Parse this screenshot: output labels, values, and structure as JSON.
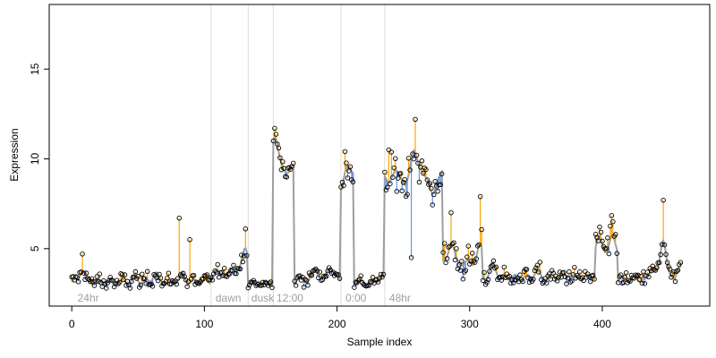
{
  "chart_data": {
    "type": "scatter",
    "title": "",
    "xlabel": "Sample index",
    "ylabel": "Expression",
    "xlim": [
      -17,
      481
    ],
    "ylim": [
      1.8,
      18.6
    ],
    "xticks": [
      0,
      100,
      200,
      300,
      400
    ],
    "yticks": [
      5,
      10,
      15
    ],
    "grid": false,
    "region_boundaries": [
      105,
      133,
      152,
      203,
      236
    ],
    "region_labels": [
      {
        "label": "24hr",
        "x": 3
      },
      {
        "label": "dawn",
        "x": 107
      },
      {
        "label": "dusk",
        "x": 134
      },
      {
        "label": "12:00",
        "x": 153
      },
      {
        "label": "0:00",
        "x": 205
      },
      {
        "label": "48hr",
        "x": 238
      }
    ],
    "colors": {
      "fitted_line": "#9e9e9e",
      "residual_above": "#ffa500",
      "residual_below": "#6495ed",
      "point_edge": "#000000",
      "boundary_line": "#dcdcdc",
      "region_label": "#a0a0a0"
    },
    "segments": [
      {
        "x0": 0,
        "x1": 105,
        "base": 3.15,
        "noise": 0.35,
        "bumps": [
          [
            8,
            3.9,
            1.0
          ],
          [
            48,
            3.3,
            1.5
          ],
          [
            63,
            3.5,
            1.5
          ],
          [
            83,
            3.6,
            1.0
          ]
        ]
      },
      {
        "x0": 105,
        "x1": 133,
        "base": 3.6,
        "noise": 0.3,
        "bumps": [
          [
            123,
            4.2,
            0.8
          ],
          [
            131,
            4.8,
            1.4
          ]
        ]
      },
      {
        "x0": 133,
        "x1": 152,
        "base": 3.05,
        "noise": 0.15,
        "bumps": []
      },
      {
        "x0": 152,
        "x1": 168,
        "base": 9.8,
        "noise": 0.5,
        "bumps": [
          [
            153,
            10.8,
            1.5
          ],
          [
            163,
            8.8,
            0.8
          ]
        ]
      },
      {
        "x0": 168,
        "x1": 203,
        "base": 3.3,
        "noise": 0.3,
        "bumps": [
          [
            184,
            3.9,
            0.9
          ],
          [
            195,
            4.2,
            0.9
          ]
        ]
      },
      {
        "x0": 203,
        "x1": 213,
        "base": 9.3,
        "noise": 0.6,
        "bumps": [
          [
            203,
            6.5,
            0.4
          ],
          [
            206,
            10.0,
            0.6
          ]
        ]
      },
      {
        "x0": 213,
        "x1": 236,
        "base": 3.1,
        "noise": 0.2,
        "bumps": [
          [
            233,
            3.8,
            0.5
          ]
        ]
      },
      {
        "x0": 236,
        "x1": 280,
        "base": 9.2,
        "noise": 0.9,
        "bumps": [
          [
            238,
            7.5,
            0.3
          ],
          [
            252,
            7.9,
            0.6
          ],
          [
            258,
            10.8,
            1.0
          ],
          [
            272,
            8.0,
            1.2
          ]
        ]
      },
      {
        "x0": 280,
        "x1": 310,
        "base": 4.2,
        "noise": 0.7,
        "bumps": [
          [
            286,
            5.8,
            0.8
          ],
          [
            308,
            5.5,
            0.8
          ]
        ]
      },
      {
        "x0": 310,
        "x1": 395,
        "base": 3.4,
        "noise": 0.4,
        "bumps": [
          [
            318,
            4.4,
            0.8
          ],
          [
            350,
            3.8,
            0.8
          ],
          [
            375,
            3.6,
            0.8
          ]
        ]
      },
      {
        "x0": 395,
        "x1": 412,
        "base": 4.8,
        "noise": 0.8,
        "bumps": [
          [
            398,
            5.9,
            0.8
          ],
          [
            408,
            6.0,
            0.8
          ]
        ]
      },
      {
        "x0": 412,
        "x1": 460,
        "base": 3.3,
        "noise": 0.35,
        "bumps": [
          [
            438,
            4.2,
            0.8
          ],
          [
            446,
            6.5,
            0.8
          ],
          [
            458,
            4.5,
            0.6
          ]
        ]
      }
    ],
    "outliers": [
      {
        "x": 8,
        "y": 4.7
      },
      {
        "x": 81,
        "y": 6.7
      },
      {
        "x": 89,
        "y": 5.5
      },
      {
        "x": 131,
        "y": 6.1
      },
      {
        "x": 153,
        "y": 11.7
      },
      {
        "x": 206,
        "y": 10.4
      },
      {
        "x": 239,
        "y": 10.5
      },
      {
        "x": 259,
        "y": 12.2
      },
      {
        "x": 286,
        "y": 7.0
      },
      {
        "x": 308,
        "y": 7.9
      },
      {
        "x": 256,
        "y": 4.5
      },
      {
        "x": 446,
        "y": 7.7
      },
      {
        "x": 398,
        "y": 6.2
      },
      {
        "x": 408,
        "y": 6.5
      }
    ]
  }
}
